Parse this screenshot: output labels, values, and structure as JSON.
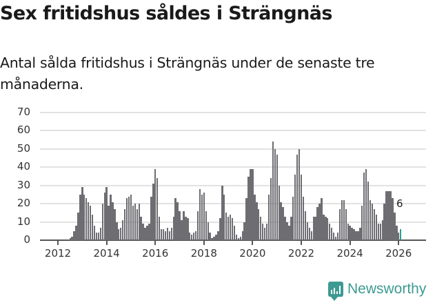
{
  "header": {
    "title": "Sex fritidshus såldes i Strängnäs",
    "subtitle": "Antal sålda fritidshus i Strängnäs under de senaste tre månaderna."
  },
  "branding": {
    "logo_text": "Newsworthy",
    "color": "#3d9a92"
  },
  "chart_data": {
    "type": "bar",
    "title": "Sex fritidshus såldes i Strängnäs",
    "subtitle": "Antal sålda fritidshus i Strängnäs under de senaste tre månaderna.",
    "xlabel": "",
    "ylabel": "",
    "ylim": [
      0,
      70
    ],
    "yticks": [
      0,
      10,
      20,
      30,
      40,
      50,
      60,
      70
    ],
    "xticks": [
      "2012",
      "2014",
      "2016",
      "2018",
      "2020",
      "2022",
      "2024",
      "2026"
    ],
    "grid": true,
    "legend": null,
    "bar_color": "#6d6d72",
    "highlight_color": "#2a9d8f",
    "annotation": {
      "label": "6",
      "target": "last bar"
    },
    "start": "2011-12",
    "frequency": "monthly",
    "values": [
      1,
      2,
      5,
      8,
      15,
      25,
      29,
      25,
      23,
      21,
      19,
      14,
      8,
      4,
      4,
      7,
      20,
      26,
      29,
      19,
      25,
      21,
      17,
      10,
      6,
      7,
      11,
      17,
      23,
      24,
      25,
      19,
      20,
      17,
      20,
      13,
      9,
      7,
      8,
      9,
      24,
      31,
      39,
      34,
      13,
      6,
      6,
      5,
      7,
      5,
      7,
      13,
      23,
      21,
      16,
      11,
      16,
      13,
      12,
      4,
      3,
      4,
      5,
      16,
      28,
      25,
      26,
      16,
      10,
      4,
      1,
      2,
      3,
      5,
      12,
      30,
      25,
      15,
      13,
      14,
      12,
      8,
      3,
      1,
      2,
      5,
      10,
      23,
      35,
      39,
      39,
      25,
      21,
      17,
      13,
      9,
      7,
      9,
      25,
      34,
      54,
      50,
      47,
      30,
      21,
      18,
      13,
      10,
      8,
      13,
      24,
      36,
      47,
      50,
      36,
      24,
      16,
      10,
      7,
      5,
      13,
      13,
      18,
      20,
      23,
      14,
      13,
      12,
      9,
      7,
      4,
      2,
      4,
      17,
      22,
      22,
      17,
      9,
      8,
      7,
      6,
      5,
      5,
      7,
      19,
      37,
      39,
      32,
      22,
      20,
      17,
      14,
      9,
      9,
      11,
      20,
      27,
      27,
      27,
      23,
      15,
      8,
      4,
      6
    ],
    "last_value": 6
  }
}
